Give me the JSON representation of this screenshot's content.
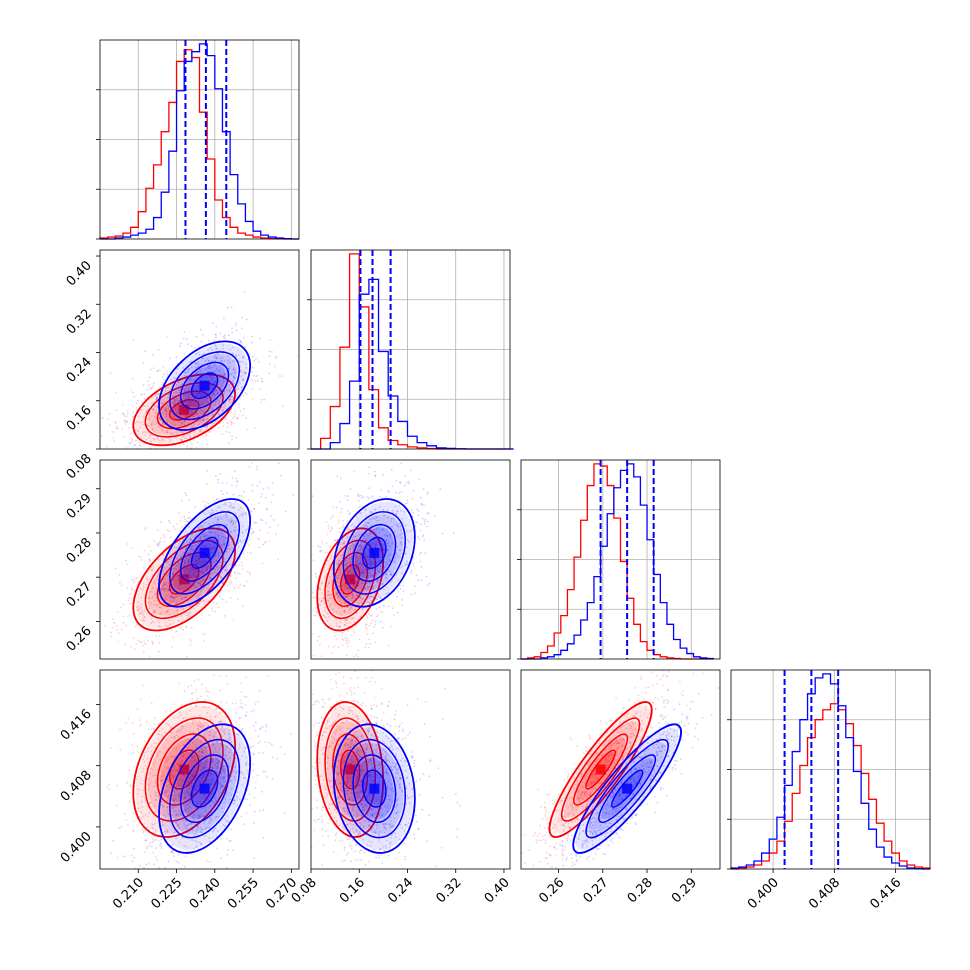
{
  "chart_data": {
    "type": "corner",
    "n_parameters": 4,
    "series": [
      {
        "color": "#ff0000"
      },
      {
        "color": "#0000ff"
      }
    ],
    "parameters": [
      {
        "range": [
          0.195,
          0.273
        ],
        "ticks": [
          "0.210",
          "0.225",
          "0.240",
          "0.255",
          "0.270"
        ]
      },
      {
        "range": [
          0.08,
          0.41
        ],
        "ticks": [
          "0.08",
          "0.16",
          "0.24",
          "0.32",
          "0.40"
        ]
      },
      {
        "range": [
          0.2515,
          0.2965
        ],
        "ticks": [
          "0.26",
          "0.27",
          "0.28",
          "0.29"
        ]
      },
      {
        "range": [
          0.3945,
          0.4205
        ],
        "ticks": [
          "0.400",
          "0.408",
          "0.416"
        ]
      }
    ],
    "marginals": [
      {
        "quantile_lines": [
          0.2285,
          0.2365,
          0.2445
        ],
        "bins": [
          0.195,
          0.198,
          0.201,
          0.204,
          0.207,
          0.21,
          0.213,
          0.216,
          0.219,
          0.222,
          0.225,
          0.228,
          0.231,
          0.234,
          0.237,
          0.24,
          0.243,
          0.246,
          0.249,
          0.252,
          0.255,
          0.258,
          0.261,
          0.264,
          0.267,
          0.27,
          0.273
        ],
        "red": [
          0.5,
          1,
          1.5,
          3,
          6,
          14,
          26,
          38,
          55,
          70,
          91,
          97,
          93,
          65,
          41,
          20,
          11,
          6,
          3,
          2,
          1,
          0.5,
          0.2,
          0.1,
          0,
          0
        ],
        "blue": [
          0,
          0,
          0.5,
          1,
          2,
          3,
          5,
          11,
          24,
          45,
          76,
          91,
          96,
          100,
          94,
          77,
          55,
          33,
          18,
          9,
          4,
          2,
          1,
          0.5,
          0.2,
          0
        ]
      },
      {
        "quantile_lines": [
          0.162,
          0.182,
          0.212
        ],
        "bins": [
          0.08,
          0.096,
          0.112,
          0.128,
          0.144,
          0.16,
          0.176,
          0.192,
          0.208,
          0.224,
          0.24,
          0.256,
          0.272,
          0.288,
          0.304,
          0.32,
          0.336,
          0.352,
          0.368,
          0.384,
          0.4,
          0.416
        ],
        "red": [
          0,
          5,
          20,
          48,
          92,
          67,
          28,
          10,
          4,
          2,
          1,
          0.5,
          0.2,
          0,
          0,
          0,
          0,
          0,
          0,
          0,
          0
        ],
        "blue": [
          0,
          0,
          3,
          12,
          32,
          73,
          80,
          46,
          25,
          13,
          6,
          3,
          1.5,
          0.5,
          0.3,
          0.1,
          0,
          0,
          0,
          0,
          0
        ]
      },
      {
        "quantile_lines": [
          0.2695,
          0.2755,
          0.2815
        ],
        "bins": [
          0.2515,
          0.253,
          0.2545,
          0.256,
          0.2575,
          0.259,
          0.2605,
          0.262,
          0.2635,
          0.265,
          0.2665,
          0.268,
          0.2695,
          0.271,
          0.2725,
          0.274,
          0.2755,
          0.277,
          0.2785,
          0.28,
          0.2815,
          0.283,
          0.2845,
          0.286,
          0.2875,
          0.289,
          0.2905,
          0.292,
          0.2935,
          0.295
        ],
        "red": [
          0,
          0.5,
          1,
          3,
          6,
          12,
          20,
          32,
          47,
          64,
          80,
          90,
          89,
          80,
          65,
          45,
          28,
          16,
          8,
          4,
          2,
          1,
          0.5,
          0.2,
          0,
          0,
          0,
          0,
          0
        ],
        "blue": [
          0,
          0,
          0,
          0.5,
          1,
          2,
          4,
          7,
          11,
          18,
          26,
          38,
          52,
          67,
          79,
          87,
          90,
          84,
          71,
          55,
          39,
          26,
          16,
          9,
          5,
          2.5,
          1,
          0.5,
          0.2
        ]
      },
      {
        "quantile_lines": [
          0.4015,
          0.405,
          0.4085
        ],
        "bins": [
          0.3945,
          0.3955,
          0.3965,
          0.3975,
          0.3985,
          0.3995,
          0.4005,
          0.4015,
          0.4025,
          0.4035,
          0.4045,
          0.4055,
          0.4065,
          0.4075,
          0.4085,
          0.4095,
          0.4105,
          0.4115,
          0.4125,
          0.4135,
          0.4145,
          0.4155,
          0.4165,
          0.4175,
          0.4185,
          0.4195,
          0.4205
        ],
        "red": [
          0,
          0.5,
          1,
          2,
          4,
          8,
          14,
          24,
          38,
          52,
          66,
          75,
          80,
          83,
          80,
          73,
          62,
          48,
          35,
          23,
          14,
          8,
          4,
          2,
          1,
          0.5
        ],
        "blue": [
          0.5,
          1,
          2,
          4,
          8,
          15,
          26,
          42,
          59,
          75,
          88,
          96,
          98,
          93,
          82,
          66,
          49,
          33,
          20,
          11,
          6,
          3,
          1.5,
          0.5,
          0.2,
          0
        ]
      }
    ],
    "joint": [
      {
        "xi": 0,
        "yi": 1,
        "red": {
          "mean": [
            0.228,
            0.145
          ],
          "sd": [
            0.0095,
            0.028
          ],
          "rho": 0.45
        },
        "blue": {
          "mean": [
            0.236,
            0.185
          ],
          "sd": [
            0.0085,
            0.035
          ],
          "rho": 0.45
        }
      },
      {
        "xi": 0,
        "yi": 2,
        "red": {
          "mean": [
            0.228,
            0.2695
          ],
          "sd": [
            0.0095,
            0.0055
          ],
          "rho": 0.55
        },
        "blue": {
          "mean": [
            0.236,
            0.2755
          ],
          "sd": [
            0.0085,
            0.0058
          ],
          "rho": 0.6
        }
      },
      {
        "xi": 1,
        "yi": 2,
        "red": {
          "mean": [
            0.145,
            0.2695
          ],
          "sd": [
            0.026,
            0.0055
          ],
          "rho": 0.35
        },
        "blue": {
          "mean": [
            0.185,
            0.2755
          ],
          "sd": [
            0.032,
            0.0058
          ],
          "rho": 0.3
        }
      },
      {
        "xi": 0,
        "yi": 3,
        "red": {
          "mean": [
            0.228,
            0.4075
          ],
          "sd": [
            0.0095,
            0.0042
          ],
          "rho": 0.35
        },
        "blue": {
          "mean": [
            0.236,
            0.405
          ],
          "sd": [
            0.0085,
            0.004
          ],
          "rho": 0.4
        }
      },
      {
        "xi": 1,
        "yi": 3,
        "red": {
          "mean": [
            0.145,
            0.4075
          ],
          "sd": [
            0.026,
            0.0042
          ],
          "rho": -0.15
        },
        "blue": {
          "mean": [
            0.185,
            0.405
          ],
          "sd": [
            0.032,
            0.004
          ],
          "rho": -0.15
        }
      },
      {
        "xi": 2,
        "yi": 3,
        "red": {
          "mean": [
            0.2695,
            0.4075
          ],
          "sd": [
            0.0055,
            0.0042
          ],
          "rho": 0.88
        },
        "blue": {
          "mean": [
            0.2755,
            0.405
          ],
          "sd": [
            0.0058,
            0.004
          ],
          "rho": 0.88
        }
      }
    ],
    "grid": true
  }
}
